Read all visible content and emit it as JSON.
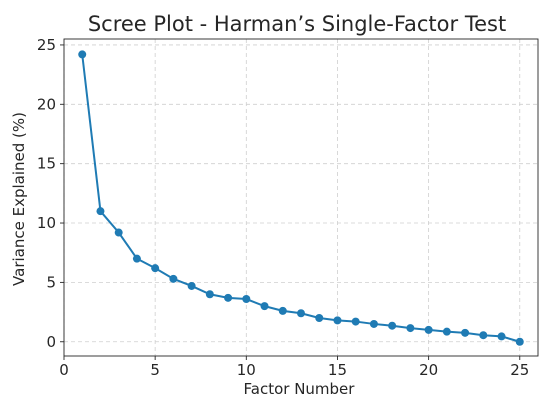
{
  "chart_data": {
    "type": "line",
    "title": "Scree Plot - Harman’s Single-Factor Test",
    "xlabel": "Factor Number",
    "ylabel": "Variance Explained (%)",
    "xlim": [
      0,
      26
    ],
    "ylim": [
      -1.2,
      25.5
    ],
    "xticks": [
      0,
      5,
      10,
      15,
      20,
      25
    ],
    "yticks": [
      0,
      5,
      10,
      15,
      20,
      25
    ],
    "grid": true,
    "color": "#1f7bb4",
    "series": [
      {
        "x": [
          1,
          2,
          3,
          4,
          5,
          6,
          7,
          8,
          9,
          10,
          11,
          12,
          13,
          14,
          15,
          16,
          17,
          18,
          19,
          20,
          21,
          22,
          23,
          24,
          25
        ],
        "values": [
          24.2,
          11.0,
          9.2,
          7.0,
          6.2,
          5.3,
          4.7,
          4.0,
          3.7,
          3.6,
          3.0,
          2.6,
          2.4,
          2.0,
          1.8,
          1.7,
          1.5,
          1.35,
          1.15,
          1.0,
          0.85,
          0.75,
          0.55,
          0.45,
          0.0
        ]
      }
    ]
  }
}
